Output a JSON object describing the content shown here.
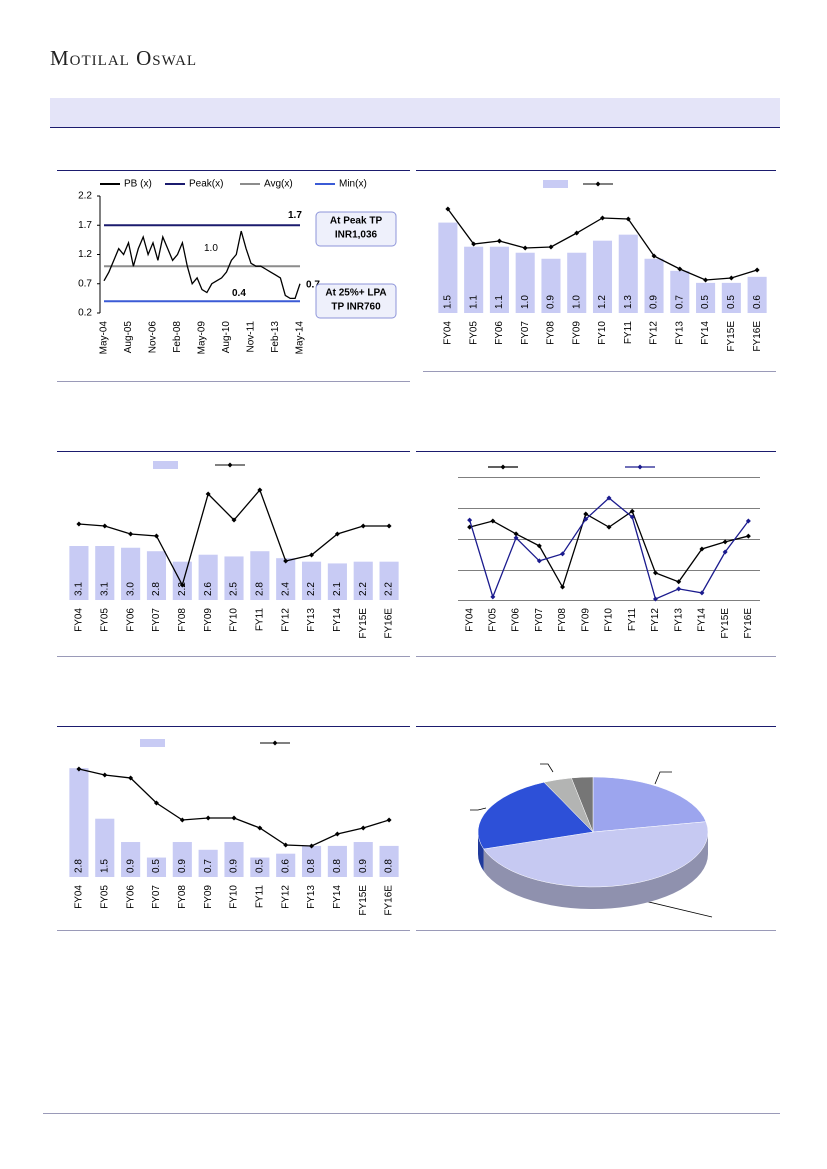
{
  "header": {
    "brand": "Motilal Oswal"
  },
  "chart_data": [
    {
      "type": "line",
      "categories": [
        "May-04",
        null,
        null,
        null,
        null,
        "Aug-05",
        null,
        null,
        null,
        null,
        "Nov-06",
        null,
        null,
        null,
        null,
        "Feb-08",
        null,
        null,
        null,
        null,
        "May-09",
        null,
        null,
        null,
        null,
        "Aug-10",
        null,
        null,
        null,
        null,
        "Nov-11",
        null,
        null,
        null,
        null,
        "Feb-13",
        null,
        null,
        null,
        null,
        "May-14"
      ],
      "series": [
        {
          "name": "PB (x)",
          "color": "#000000",
          "values": [
            0.75,
            0.9,
            1.1,
            1.3,
            1.2,
            1.4,
            1.0,
            1.3,
            1.5,
            1.2,
            1.4,
            1.1,
            1.5,
            1.3,
            1.1,
            1.2,
            1.4,
            1.0,
            0.7,
            0.8,
            0.6,
            0.55,
            0.7,
            0.75,
            0.8,
            0.9,
            1.1,
            1.2,
            1.6,
            1.3,
            1.05,
            1.0,
            1.0,
            0.95,
            0.9,
            0.85,
            0.8,
            0.5,
            0.45,
            0.45,
            0.7
          ]
        }
      ],
      "reference_lines": [
        {
          "name": "Peak(x)",
          "value": 1.7,
          "color": "#1b1b6e"
        },
        {
          "name": "Avg(x)",
          "value": 1.0,
          "label": "1.0",
          "color": "#8c8c8c"
        },
        {
          "name": "Min(x)",
          "value": 0.4,
          "color": "#3b5bd6"
        }
      ],
      "ylim": [
        0.2,
        2.2
      ],
      "yticks": [
        0.2,
        0.7,
        1.2,
        1.7,
        2.2
      ],
      "annotations": [
        {
          "text": [
            "At Peak TP",
            "INR1,036"
          ]
        },
        {
          "text": [
            "At 25%+ LPA",
            "TP INR760"
          ]
        }
      ]
    },
    {
      "type": "combo",
      "categories": [
        "FY04",
        "FY05",
        "FY06",
        "FY07",
        "FY08",
        "FY09",
        "FY10",
        "FY11",
        "FY12",
        "FY13",
        "FY14",
        "FY15E",
        "FY16E"
      ],
      "series": [
        {
          "type": "bar",
          "color": "#c8cbf4",
          "values": [
            1.5,
            1.1,
            1.1,
            1.0,
            0.9,
            1.0,
            1.2,
            1.3,
            0.9,
            0.7,
            0.5,
            0.5,
            0.6
          ],
          "value_labels": [
            "1.5",
            "1.1",
            "1.1",
            "1.0",
            "0.9",
            "1.0",
            "1.2",
            "1.3",
            "0.9",
            "0.7",
            "0.5",
            "0.5",
            "0.6"
          ]
        },
        {
          "type": "line",
          "color": "#000000",
          "values": [
            91,
            56,
            59,
            52,
            53,
            67,
            82,
            81,
            44,
            31,
            20,
            22,
            30
          ]
        }
      ]
    },
    {
      "type": "combo",
      "categories": [
        "FY04",
        "FY05",
        "FY06",
        "FY07",
        "FY08",
        "FY09",
        "FY10",
        "FY11",
        "FY12",
        "FY13",
        "FY14",
        "FY15E",
        "FY16E"
      ],
      "series": [
        {
          "type": "bar",
          "color": "#c8cbf4",
          "values": [
            3.1,
            3.1,
            3.0,
            2.8,
            2.2,
            2.6,
            2.5,
            2.8,
            2.4,
            2.2,
            2.1,
            2.2,
            2.2
          ],
          "value_labels": [
            "3.1",
            "3.1",
            "3.0",
            "2.8",
            "2.2",
            "2.6",
            "2.5",
            "2.8",
            "2.4",
            "2.2",
            "2.1",
            "2.2",
            "2.2"
          ]
        },
        {
          "type": "line",
          "color": "#000000",
          "values": [
            76,
            74,
            66,
            64,
            15,
            106,
            80,
            110,
            39,
            45,
            66,
            74,
            74
          ]
        }
      ]
    },
    {
      "type": "line",
      "categories": [
        "FY04",
        "FY05",
        "FY06",
        "FY07",
        "FY08",
        "FY09",
        "FY10",
        "FY11",
        "FY12",
        "FY13",
        "FY14",
        "FY15E",
        "FY16E"
      ],
      "series": [
        {
          "color": "#000000",
          "values": [
            2.37,
            2.57,
            2.15,
            1.76,
            0.42,
            2.8,
            2.37,
            2.89,
            0.88,
            0.59,
            1.66,
            1.89,
            2.08
          ]
        },
        {
          "color": "#1b1b8e",
          "values": [
            2.6,
            0.1,
            2.02,
            1.27,
            1.5,
            2.63,
            3.32,
            2.7,
            0.03,
            0.36,
            0.23,
            1.56,
            2.57
          ]
        }
      ]
    },
    {
      "type": "combo",
      "categories": [
        "FY04",
        "FY05",
        "FY06",
        "FY07",
        "FY08",
        "FY09",
        "FY10",
        "FY11",
        "FY12",
        "FY13",
        "FY14",
        "FY15E",
        "FY16E"
      ],
      "series": [
        {
          "type": "bar",
          "color": "#c8cbf4",
          "values": [
            2.8,
            1.5,
            0.9,
            0.5,
            0.9,
            0.7,
            0.9,
            0.5,
            0.6,
            0.8,
            0.8,
            0.9,
            0.8
          ],
          "value_labels": [
            "2.8",
            "1.5",
            "0.9",
            "0.5",
            "0.9",
            "0.7",
            "0.9",
            "0.5",
            "0.6",
            "0.8",
            "0.8",
            "0.9",
            "0.8"
          ]
        },
        {
          "type": "line",
          "color": "#000000",
          "values": [
            87,
            81,
            78,
            53,
            36,
            38,
            38,
            28,
            11,
            10,
            22,
            28,
            36
          ]
        }
      ]
    },
    {
      "type": "pie",
      "values": [
        22,
        48,
        23,
        4,
        3
      ],
      "colors": [
        "#9ca5ee",
        "#c6c9f2",
        "#2d50d8",
        "#b3b4b3",
        "#767676"
      ]
    }
  ]
}
